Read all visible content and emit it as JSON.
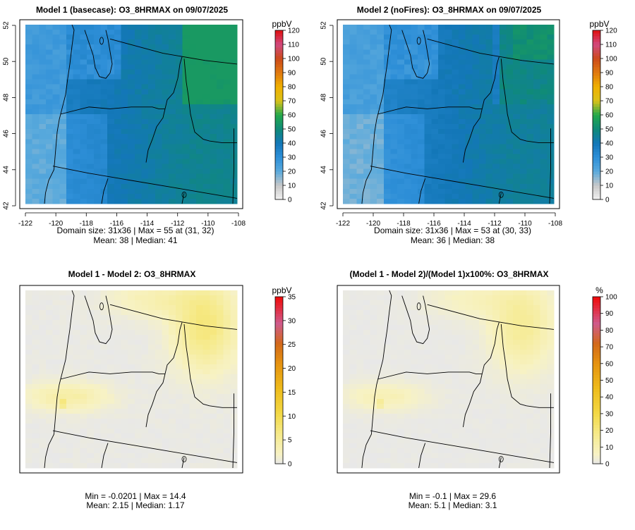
{
  "chart_data": [
    {
      "type": "heatmap",
      "title": "Model 1 (basecase): O3_8HRMAX on 09/07/2025",
      "x_ticks": [
        "-122",
        "-120",
        "-118",
        "-116",
        "-114",
        "-112",
        "-110",
        "-108"
      ],
      "y_ticks": [
        "42",
        "44",
        "46",
        "48",
        "50",
        "52"
      ],
      "xlim": [
        -122,
        -108
      ],
      "ylim": [
        42,
        52
      ],
      "colorbar": {
        "unit": "ppbV",
        "ticks": [
          "0",
          "10",
          "20",
          "30",
          "40",
          "50",
          "60",
          "70",
          "80",
          "90",
          "100",
          "110",
          "120"
        ],
        "range": [
          0,
          120
        ]
      },
      "stats_line1": "Domain size: 31x36 | Max = 55 at (31, 32)",
      "stats_line2": "Mean: 38 |  Median: 41",
      "summary": {
        "grid": "31x36",
        "max": 55,
        "max_cell": [
          31,
          32
        ],
        "mean": 38,
        "median": 41
      }
    },
    {
      "type": "heatmap",
      "title": "Model 2 (noFires): O3_8HRMAX on 09/07/2025",
      "x_ticks": [
        "-122",
        "-120",
        "-118",
        "-116",
        "-114",
        "-112",
        "-110",
        "-108"
      ],
      "y_ticks": [
        "42",
        "44",
        "46",
        "48",
        "50",
        "52"
      ],
      "xlim": [
        -122,
        -108
      ],
      "ylim": [
        42,
        52
      ],
      "colorbar": {
        "unit": "ppbV",
        "ticks": [
          "0",
          "10",
          "20",
          "30",
          "40",
          "50",
          "60",
          "70",
          "80",
          "90",
          "100",
          "110",
          "120"
        ],
        "range": [
          0,
          120
        ]
      },
      "stats_line1": "Domain size: 31x36 | Max = 53 at (30, 33)",
      "stats_line2": "Mean: 36 |  Median: 38",
      "summary": {
        "grid": "31x36",
        "max": 53,
        "max_cell": [
          30,
          33
        ],
        "mean": 36,
        "median": 38
      }
    },
    {
      "type": "heatmap",
      "title": "Model 1 - Model 2: O3_8HRMAX",
      "colorbar": {
        "unit": "ppbV",
        "ticks": [
          "0",
          "5",
          "10",
          "15",
          "20",
          "25",
          "30",
          "35"
        ],
        "range": [
          0,
          35
        ]
      },
      "stats_line1": "Min = -0.0201 | Max = 14.4",
      "stats_line2": "Mean: 2.15 |  Median: 1.17",
      "summary": {
        "min": -0.0201,
        "max": 14.4,
        "mean": 2.15,
        "median": 1.17
      }
    },
    {
      "type": "heatmap",
      "title": "(Model 1 - Model 2)/(Model 1)x100%: O3_8HRMAX",
      "colorbar": {
        "unit": "%",
        "ticks": [
          "0",
          "10",
          "20",
          "30",
          "40",
          "50",
          "60",
          "70",
          "80",
          "90",
          "100"
        ],
        "range": [
          0,
          100
        ]
      },
      "stats_line1": "Min = -0.1 | Max = 29.6",
      "stats_line2": "Mean: 5.1 |  Median: 3.1",
      "summary": {
        "min": -0.1,
        "max": 29.6,
        "mean": 5.1,
        "median": 3.1
      }
    }
  ]
}
